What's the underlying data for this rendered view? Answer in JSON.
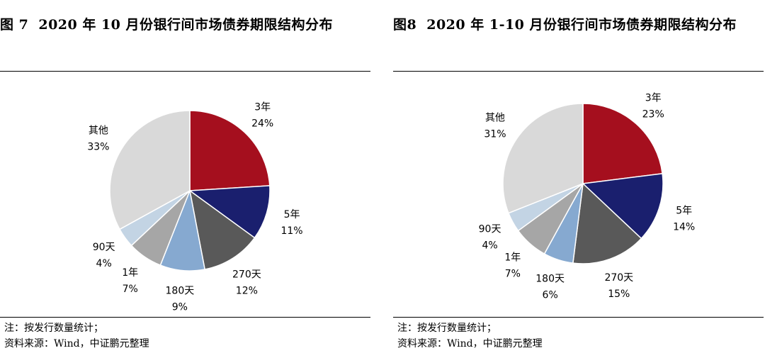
{
  "charts": [
    {
      "figure_label": "图 7",
      "title": "2020 年 10 月份银行间市场债券期限结构分布",
      "note": "注：按发行数量统计；",
      "source": "资料来源：Wind，中证鹏元整理"
    },
    {
      "figure_label": "图8",
      "title": "2020 年 1-10 月份银行间市场债券期限结构分布",
      "note": "注：按发行数量统计；",
      "source": "资料来源：Wind，中证鹏元整理"
    }
  ],
  "chart_data": [
    {
      "type": "pie",
      "title": "2020 年 10 月份银行间市场债券期限结构分布",
      "categories": [
        "3年",
        "5年",
        "270天",
        "180天",
        "1年",
        "90天",
        "其他"
      ],
      "values": [
        24,
        11,
        12,
        9,
        7,
        4,
        33
      ],
      "value_labels": [
        "24%",
        "11%",
        "12%",
        "9%",
        "7%",
        "4%",
        "33%"
      ],
      "colors": [
        "#A50F1E",
        "#1A1F6E",
        "#595959",
        "#86A9D0",
        "#A6A6A6",
        "#C3D4E4",
        "#D9D9D9"
      ],
      "start_angle": "12 o'clock",
      "direction": "clockwise",
      "legend": "none"
    },
    {
      "type": "pie",
      "title": "2020 年 1-10 月份银行间市场债券期限结构分布",
      "categories": [
        "3年",
        "5年",
        "270天",
        "180天",
        "1年",
        "90天",
        "其他"
      ],
      "values": [
        23,
        14,
        15,
        6,
        7,
        4,
        31
      ],
      "value_labels": [
        "23%",
        "14%",
        "15%",
        "6%",
        "7%",
        "4%",
        "31%"
      ],
      "colors": [
        "#A50F1E",
        "#1A1F6E",
        "#595959",
        "#86A9D0",
        "#A6A6A6",
        "#C3D4E4",
        "#D9D9D9"
      ],
      "start_angle": "12 o'clock",
      "direction": "clockwise",
      "legend": "none"
    }
  ]
}
